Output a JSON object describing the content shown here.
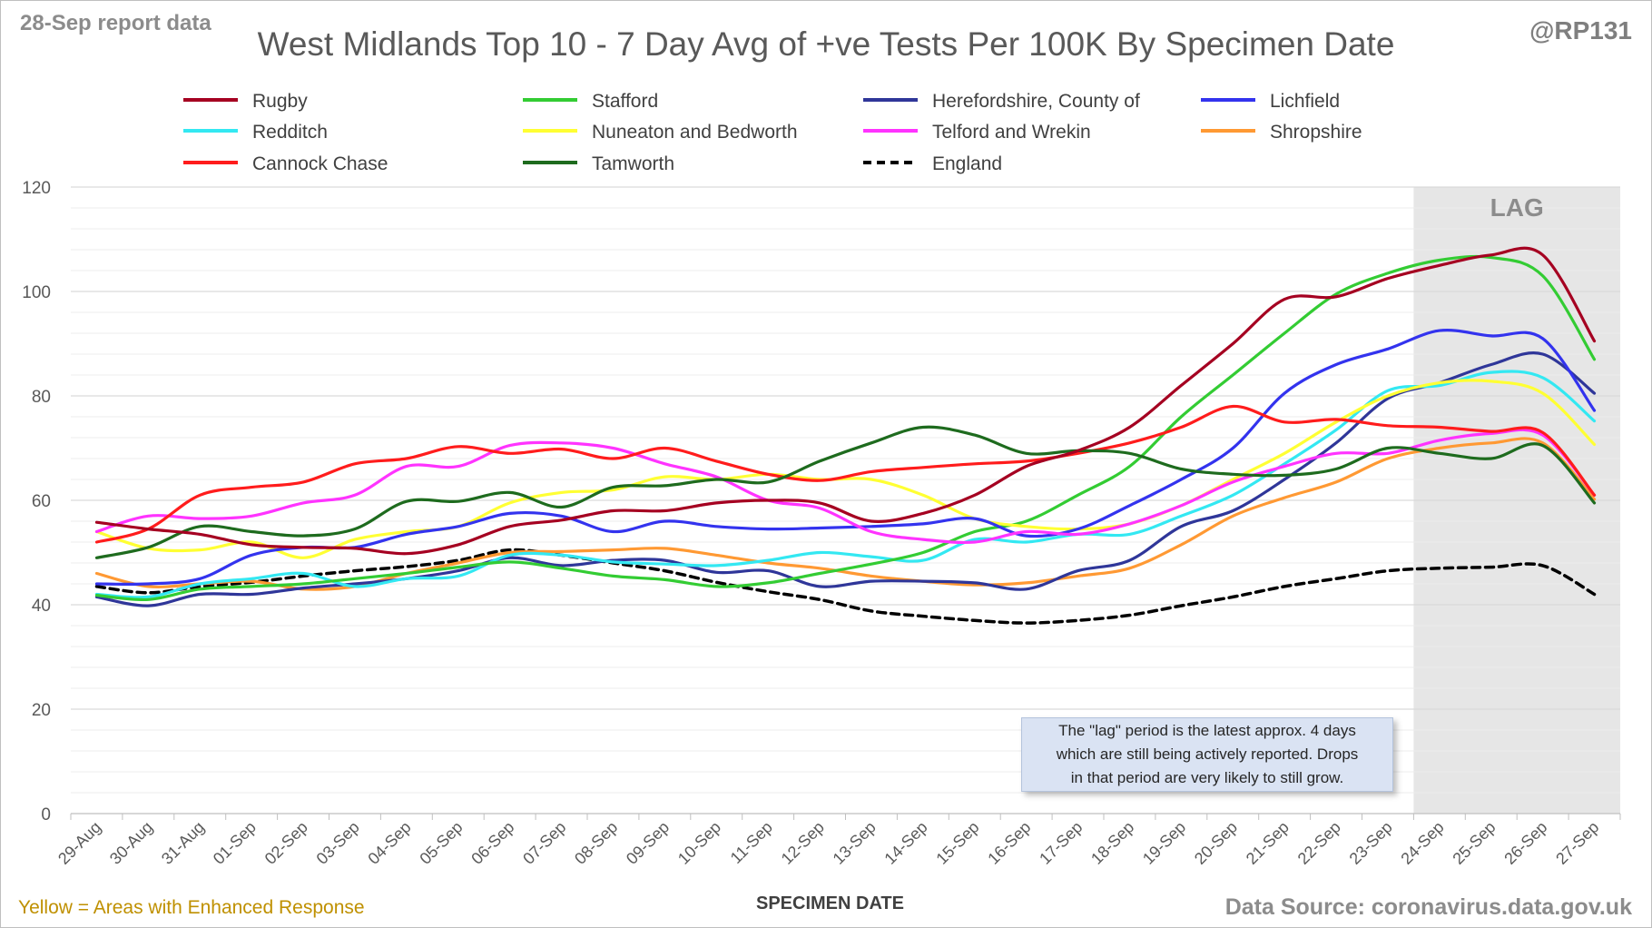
{
  "header": {
    "report_date": "28-Sep report data",
    "handle": "@RP131",
    "title": "West Midlands Top 10 - 7 Day Avg of +ve Tests Per 100K By Specimen Date"
  },
  "footer": {
    "enhanced_note": "Yellow = Areas with Enhanced Response",
    "data_source": "Data Source: coronavirus.data.gov.uk"
  },
  "annotation": {
    "lag_label": "LAG",
    "lag_start": "24-Sep",
    "lag_end": "27-Sep",
    "note_lines": [
      "The \"lag\" period is the latest approx. 4 days",
      "which are still being actively reported.  Drops",
      "in that period are very likely to still grow."
    ]
  },
  "chart_data": {
    "type": "line",
    "title": "West Midlands Top 10 - 7 Day Avg of +ve Tests Per 100K By Specimen Date",
    "xlabel": "SPECIMEN DATE",
    "ylabel": "",
    "ylim": [
      0,
      120
    ],
    "yticks": [
      0,
      20,
      40,
      60,
      80,
      100,
      120
    ],
    "grid": true,
    "legend_position": "top",
    "categories": [
      "29-Aug",
      "30-Aug",
      "31-Aug",
      "01-Sep",
      "02-Sep",
      "03-Sep",
      "04-Sep",
      "05-Sep",
      "06-Sep",
      "07-Sep",
      "08-Sep",
      "09-Sep",
      "10-Sep",
      "11-Sep",
      "12-Sep",
      "13-Sep",
      "14-Sep",
      "15-Sep",
      "16-Sep",
      "17-Sep",
      "18-Sep",
      "19-Sep",
      "20-Sep",
      "21-Sep",
      "22-Sep",
      "23-Sep",
      "24-Sep",
      "25-Sep",
      "26-Sep",
      "27-Sep"
    ],
    "series": [
      {
        "name": "Rugby",
        "color": "#a50021",
        "dash": false,
        "values": [
          55.8,
          54.5,
          53.5,
          51.5,
          51,
          50.8,
          49.8,
          51.5,
          55,
          56.2,
          58,
          58,
          59.5,
          60,
          59.5,
          56,
          57.5,
          61,
          66.5,
          69.5,
          74,
          82,
          90,
          98.5,
          99,
          102.5,
          105,
          107,
          107,
          90.5
        ]
      },
      {
        "name": "Stafford",
        "color": "#33cc33",
        "dash": false,
        "values": [
          41.8,
          41,
          43,
          43.5,
          44,
          45,
          46,
          47.2,
          48.2,
          47,
          45.5,
          44.8,
          43.5,
          44.2,
          46,
          47.8,
          50,
          54,
          56,
          61,
          66.5,
          76,
          84,
          92,
          99.5,
          103.5,
          106,
          106.5,
          103,
          87
        ]
      },
      {
        "name": "Herefordshire, County of",
        "color": "#2f3699",
        "dash": false,
        "values": [
          41.5,
          39.8,
          42,
          42,
          43.2,
          44,
          45,
          46.5,
          49,
          47.5,
          48.5,
          48.5,
          46.2,
          46.5,
          43.5,
          44.5,
          44.5,
          44.2,
          43,
          46.5,
          48.5,
          55,
          58,
          64,
          71,
          79.5,
          82.5,
          86,
          88,
          80.5
        ]
      },
      {
        "name": "Lichfield",
        "color": "#3333ee",
        "dash": false,
        "values": [
          44,
          44,
          45,
          49.5,
          51,
          51,
          53.5,
          55,
          57.5,
          57,
          54,
          56,
          55,
          54.5,
          54.7,
          55,
          55.5,
          56.5,
          53.2,
          54.5,
          59,
          64,
          70,
          80.5,
          86,
          89,
          92.5,
          91.5,
          91,
          77.2
        ]
      },
      {
        "name": "Redditch",
        "color": "#33e8f2",
        "dash": false,
        "values": [
          42,
          41.5,
          44,
          45,
          46,
          43.5,
          45,
          45.5,
          49.5,
          49.5,
          48.2,
          47.8,
          47.5,
          48.5,
          50,
          49.2,
          48.5,
          52.5,
          52,
          53.5,
          53.5,
          57,
          61,
          67,
          73.5,
          81,
          82,
          84.5,
          83.5,
          75.2
        ]
      },
      {
        "name": "Nuneaton and Bedworth",
        "color": "#ffff33",
        "dash": false,
        "values": [
          54,
          50.8,
          50.5,
          52,
          49,
          52.5,
          54,
          55,
          59.5,
          61.5,
          62,
          64.5,
          64,
          65,
          64,
          64,
          61,
          56.5,
          55,
          54.5,
          55.5,
          59,
          64,
          69,
          75,
          80,
          82.5,
          82.8,
          80.5,
          70.7
        ]
      },
      {
        "name": "Telford and Wrekin",
        "color": "#ff33ff",
        "dash": false,
        "values": [
          54,
          57,
          56.5,
          57,
          59.5,
          61,
          66.5,
          66.5,
          70.5,
          71,
          70,
          67,
          64.5,
          60,
          58.5,
          54,
          52.5,
          52,
          54,
          53.5,
          55.5,
          59,
          63.5,
          66.5,
          69,
          69,
          71.5,
          72.8,
          72.5,
          61
        ]
      },
      {
        "name": "Shropshire",
        "color": "#ff9933",
        "dash": false,
        "values": [
          46,
          43.5,
          44,
          44.5,
          43,
          43.5,
          46,
          48,
          50,
          50.2,
          50.5,
          50.8,
          49.5,
          48,
          47,
          45.5,
          44.5,
          43.8,
          44.2,
          45.5,
          47,
          51.5,
          57,
          60.5,
          63.5,
          68,
          70,
          71,
          71,
          60.2
        ]
      },
      {
        "name": "Cannock Chase",
        "color": "#ff1c1c",
        "dash": false,
        "values": [
          52,
          54.5,
          61,
          62.5,
          63.5,
          67,
          68,
          70.3,
          69,
          69.8,
          68,
          70,
          67.5,
          65,
          63.8,
          65.5,
          66.3,
          67,
          67.5,
          69,
          71,
          74,
          78,
          75,
          75.5,
          74.3,
          74,
          73.2,
          73,
          61
        ]
      },
      {
        "name": "Tamworth",
        "color": "#1e6b1e",
        "dash": false,
        "values": [
          49,
          51,
          55,
          54,
          53.2,
          54.5,
          59.8,
          59.8,
          61.5,
          58.7,
          62.5,
          62.8,
          64,
          63.5,
          67.5,
          71,
          74,
          72.5,
          69,
          69.5,
          69,
          66,
          65,
          64.8,
          66,
          70,
          69,
          68,
          70.5,
          59.5
        ]
      },
      {
        "name": "England",
        "color": "#000000",
        "dash": true,
        "values": [
          43.5,
          42.3,
          43.5,
          44.3,
          45.5,
          46.5,
          47.3,
          48.5,
          50.5,
          49.5,
          48,
          46.5,
          44.3,
          42.5,
          41,
          38.8,
          37.8,
          37,
          36.5,
          37,
          38,
          39.8,
          41.5,
          43.5,
          45,
          46.5,
          47,
          47.2,
          47.5,
          42
        ]
      }
    ]
  }
}
